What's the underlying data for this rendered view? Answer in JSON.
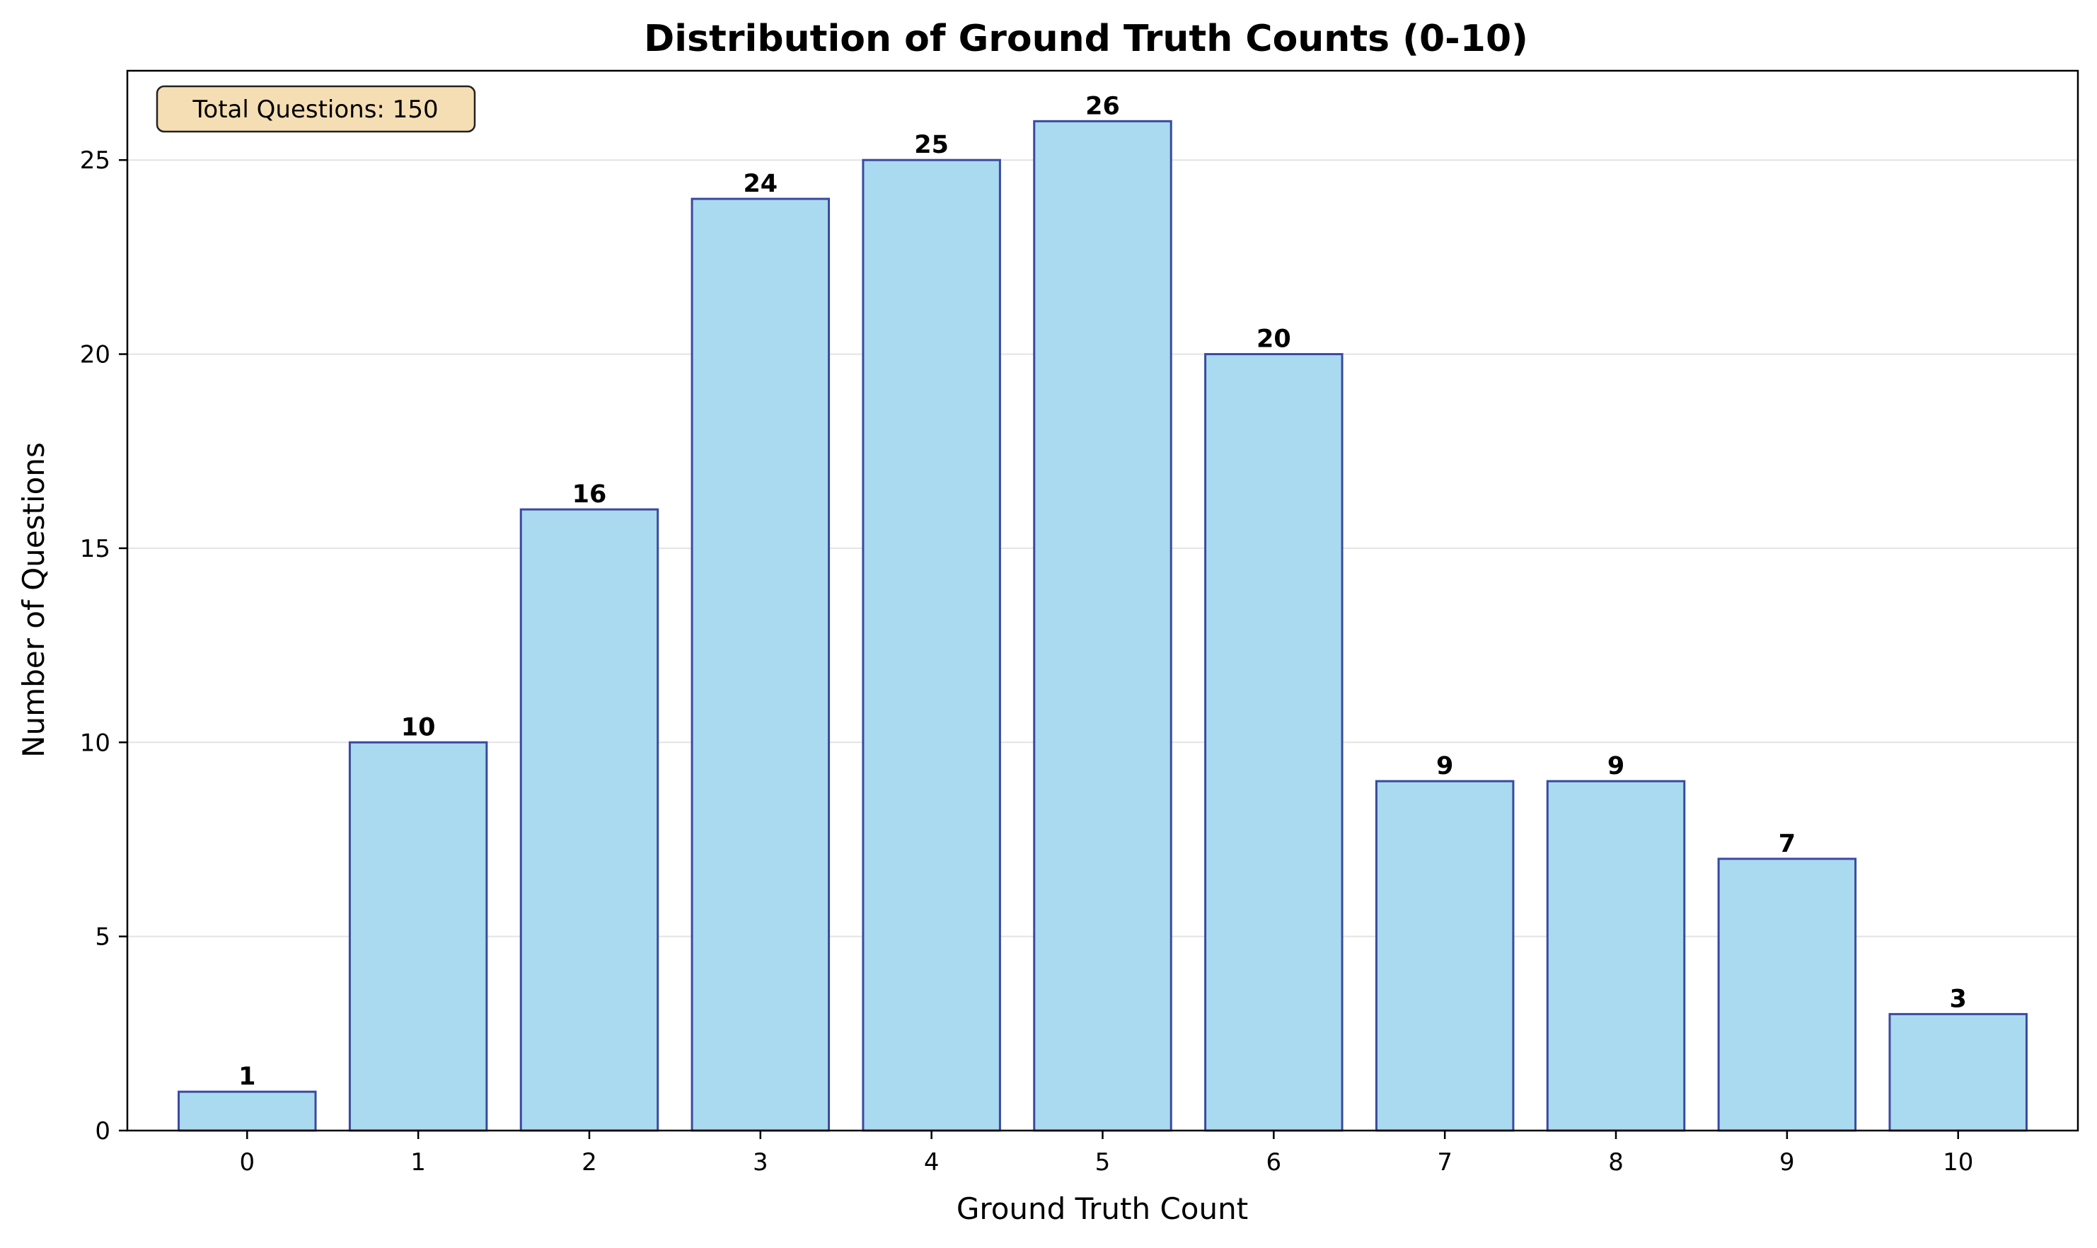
{
  "chart_data": {
    "type": "bar",
    "title": "Distribution of Ground Truth Counts (0-10)",
    "xlabel": "Ground Truth Count",
    "ylabel": "Number of Questions",
    "categories": [
      "0",
      "1",
      "2",
      "3",
      "4",
      "5",
      "6",
      "7",
      "8",
      "9",
      "10"
    ],
    "values": [
      1,
      10,
      16,
      24,
      25,
      26,
      20,
      9,
      9,
      7,
      3
    ],
    "ylim": [
      0,
      27.3
    ],
    "yticks": [
      0,
      5,
      10,
      15,
      20,
      25
    ],
    "grid": "horizontal",
    "annotation": "Total Questions: 150",
    "colors": {
      "bar_fill": "#aadaef",
      "bar_edge": "#3a4aa0",
      "grid": "#e3e3e3",
      "annotation_fill": "#f5deb3",
      "annotation_edge": "#222222"
    }
  }
}
